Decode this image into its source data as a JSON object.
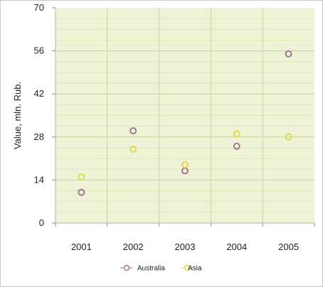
{
  "chart_data": {
    "type": "scatter",
    "title": "",
    "xlabel": "",
    "ylabel": "Value, mln. Rub.",
    "categories": [
      "2001",
      "2002",
      "2003",
      "2004",
      "2005"
    ],
    "ylim": [
      0,
      70
    ],
    "yticks": [
      0,
      14,
      28,
      42,
      56,
      70
    ],
    "grid": true,
    "legend_position": "bottom-center",
    "plot_background": "#eff3d6",
    "minor_grid_color": "#dfe6b8",
    "major_grid_color": "#c9d3a4",
    "series": [
      {
        "name": "Australia",
        "color": "#a07896",
        "values": [
          10,
          30,
          17,
          25,
          55
        ]
      },
      {
        "name": "Asia",
        "color": "#e3d84a",
        "values": [
          15,
          24,
          19,
          29,
          28
        ]
      }
    ]
  }
}
